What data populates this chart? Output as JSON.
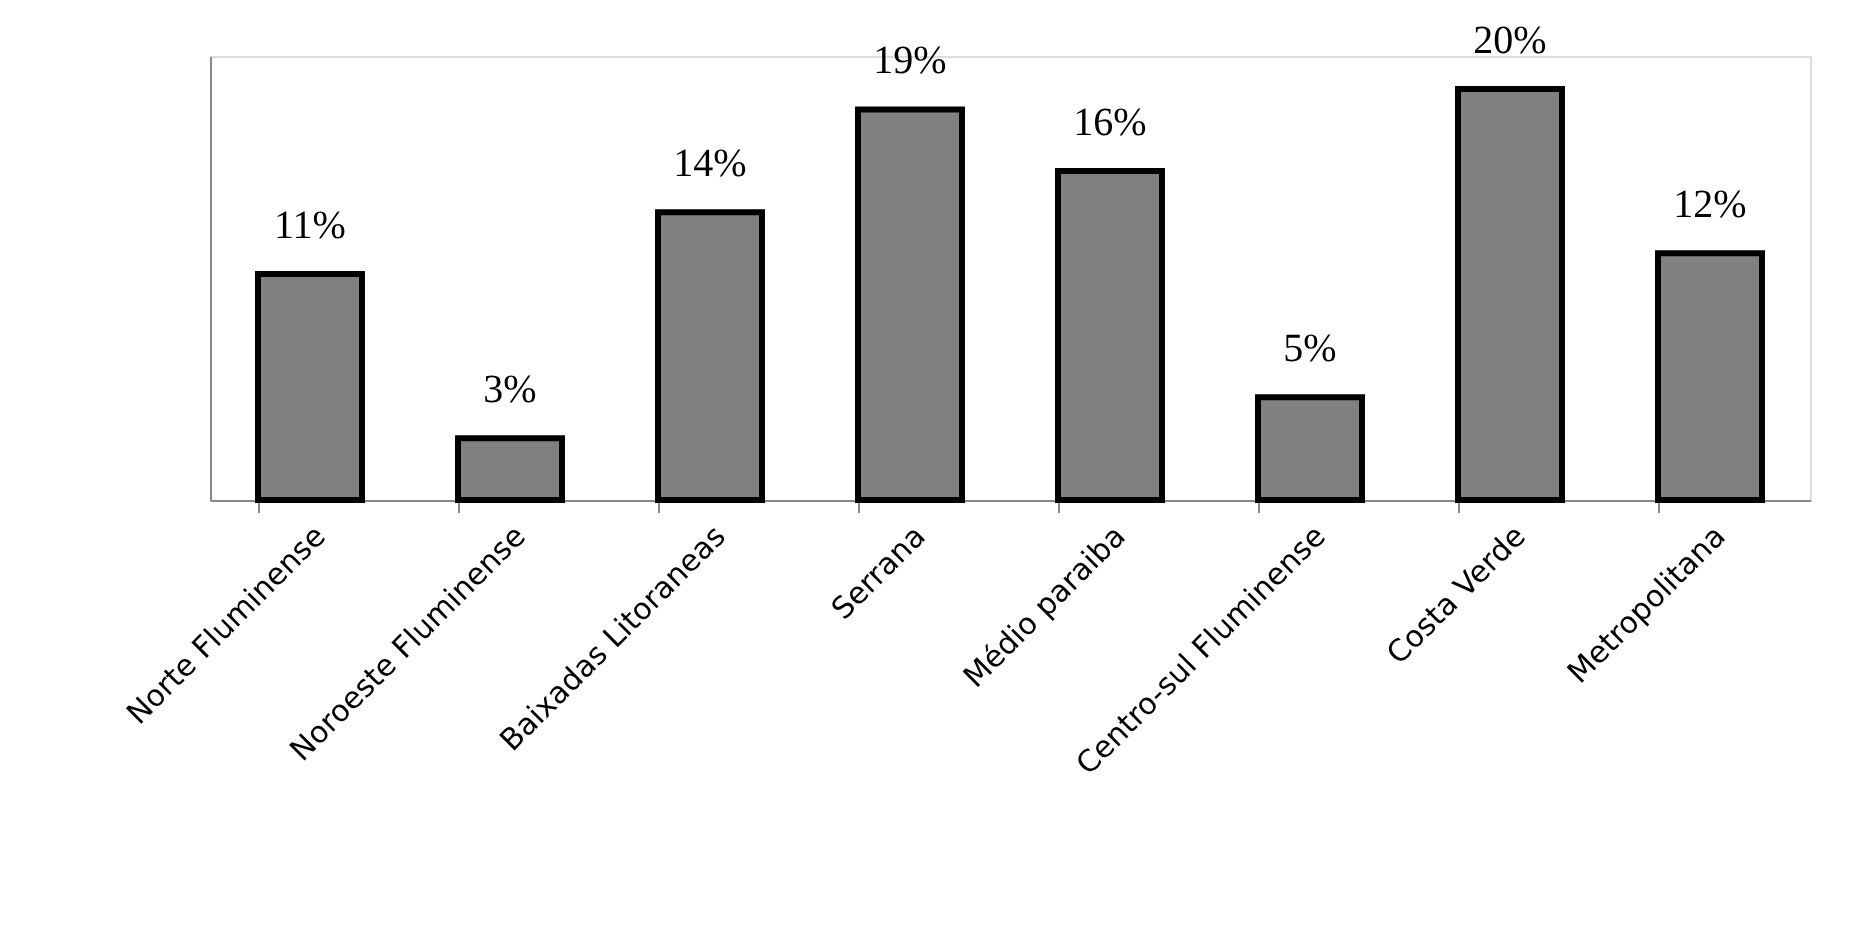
{
  "chart_data": {
    "type": "bar",
    "categories": [
      "Norte Fluminense",
      "Noroeste Fluminense",
      "Baixadas Litoraneas",
      "Serrana",
      "Médio paraiba",
      "Centro-sul Fluminense",
      "Costa Verde",
      "Metropolitana"
    ],
    "values": [
      11,
      3,
      14,
      19,
      16,
      5,
      20,
      12
    ],
    "value_labels": [
      "11%",
      "3%",
      "14%",
      "19%",
      "16%",
      "5%",
      "20%",
      "12%"
    ],
    "color": "#808080",
    "grid": false
  }
}
